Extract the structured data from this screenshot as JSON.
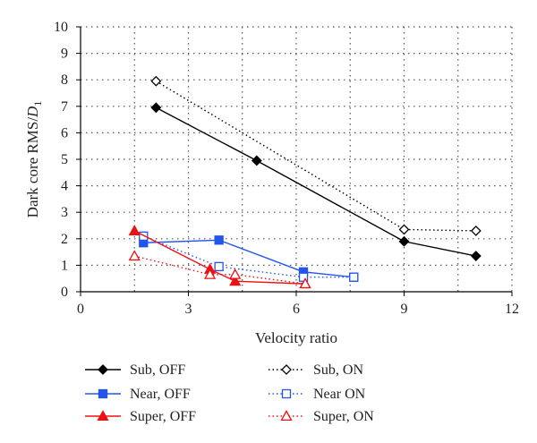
{
  "chart_data": {
    "type": "line",
    "title": "",
    "xlabel": "Velocity ratio",
    "ylabel": "Dark core RMS/",
    "ylabel_symbol": "D",
    "ylabel_subscript": "1",
    "xlim": [
      0,
      12
    ],
    "ylim": [
      0,
      10
    ],
    "xticks": [
      0,
      3,
      6,
      9,
      12
    ],
    "yticks": [
      0,
      1,
      2,
      3,
      4,
      5,
      6,
      7,
      8,
      9,
      10
    ],
    "grid": true,
    "legend_position": "bottom",
    "series": [
      {
        "name": "Sub, OFF",
        "color": "#000000",
        "marker": "diamond",
        "filled": true,
        "dash": "solid",
        "x": [
          2.1,
          4.9,
          9.0,
          11.0
        ],
        "y": [
          6.95,
          4.95,
          1.9,
          1.35
        ]
      },
      {
        "name": "Sub, ON",
        "color": "#000000",
        "marker": "diamond",
        "filled": false,
        "dash": "dotted",
        "x": [
          2.1,
          9.0,
          11.0
        ],
        "y": [
          7.95,
          2.35,
          2.3
        ]
      },
      {
        "name": "Near, OFF",
        "color": "#2255ee",
        "marker": "square",
        "filled": true,
        "dash": "solid",
        "x": [
          1.75,
          3.85,
          6.2,
          7.6
        ],
        "y": [
          1.85,
          1.95,
          0.75,
          0.55
        ]
      },
      {
        "name": "Near ON",
        "color": "#2255ee",
        "marker": "square",
        "filled": false,
        "dash": "dotted",
        "x": [
          1.75,
          3.85,
          6.2,
          7.6
        ],
        "y": [
          2.1,
          0.95,
          0.55,
          0.55
        ]
      },
      {
        "name": "Super, OFF",
        "color": "#ee1111",
        "marker": "triangle",
        "filled": true,
        "dash": "solid",
        "x": [
          1.5,
          3.6,
          4.3,
          6.25
        ],
        "y": [
          2.3,
          0.85,
          0.4,
          0.3
        ]
      },
      {
        "name": "Super, ON",
        "color": "#ee1111",
        "marker": "triangle",
        "filled": false,
        "dash": "dotted",
        "x": [
          1.5,
          3.6,
          4.3,
          6.25
        ],
        "y": [
          1.35,
          0.65,
          0.65,
          0.3
        ]
      }
    ]
  }
}
